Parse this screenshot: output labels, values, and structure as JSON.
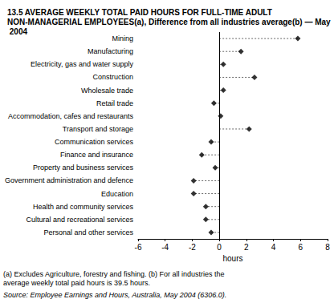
{
  "chart_data": {
    "type": "dot",
    "title": "13.5 AVERAGE WEEKLY TOTAL PAID HOURS FOR FULL-TIME ADULT NON-MANAGERIAL EMPLOYEES(a), Difference from all industries average(b) — May 2004",
    "categories": [
      "Mining",
      "Manufacturing",
      "Electricity, gas and water supply",
      "Construction",
      "Wholesale trade",
      "Retail trade",
      "Accommodation, cafes and restaurants",
      "Transport and storage",
      "Communication services",
      "Finance and insurance",
      "Property and business services",
      "Government administration and defence",
      "Education",
      "Health and community services",
      "Cultural and recreational services",
      "Personal and other services"
    ],
    "values": [
      5.8,
      1.6,
      0.3,
      2.6,
      0.3,
      -0.4,
      0.1,
      2.2,
      -0.6,
      -1.3,
      -0.3,
      -1.9,
      -1.9,
      -1.0,
      -1.0,
      -0.6
    ],
    "color": "#000000",
    "marker": "diamond",
    "line_style": "dashed",
    "orientation": "horizontal",
    "xlabel": "hours",
    "xlim": [
      -6,
      8
    ],
    "xticks": [
      -6,
      -4,
      -2,
      0,
      2,
      4,
      6,
      8
    ],
    "grid": false,
    "notes": "(a) Excludes Agriculture, forestry and fishing. (b) For all industries the average weekly total paid hours is 39.5 hours.",
    "source": "Source: Employee Earnings and Hours, Australia, May 2004 (6306.0)."
  }
}
